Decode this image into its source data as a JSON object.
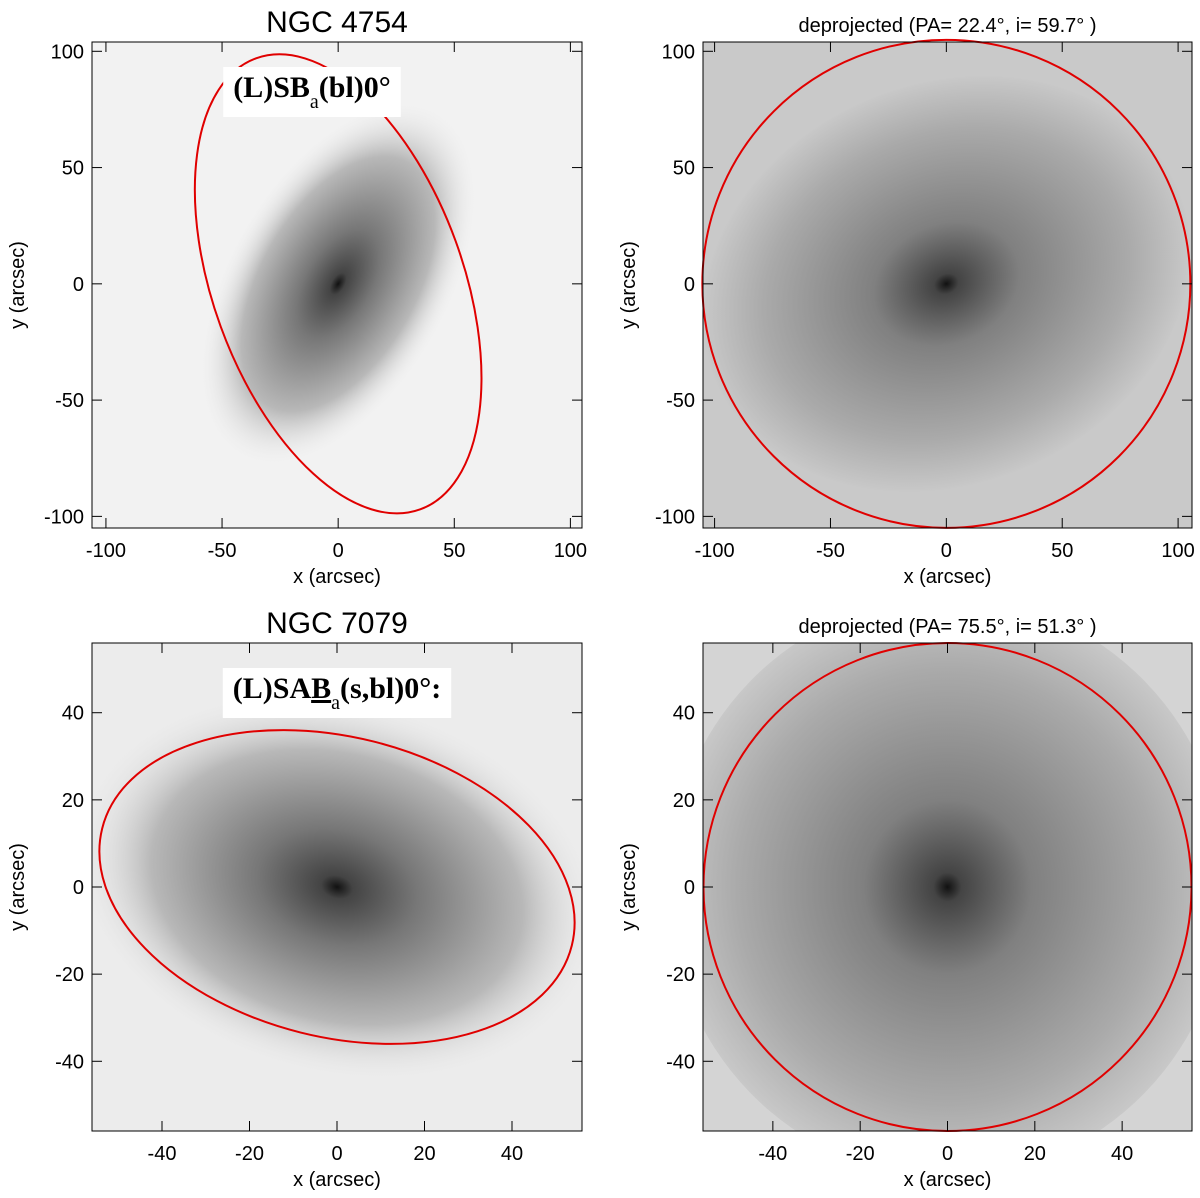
{
  "chart_data": [
    {
      "type": "image",
      "title": "NGC 4754",
      "label_parts": [
        {
          "text": "(L)SB"
        },
        {
          "text": "a",
          "style": "sub"
        },
        {
          "text": "(bl)0°"
        }
      ],
      "x_label": "x (arcsec)",
      "y_label": "y (arcsec)",
      "xlim": [
        -106,
        105
      ],
      "ylim": [
        -105,
        104
      ],
      "xticks": [
        -100,
        -50,
        0,
        50,
        100
      ],
      "yticks": [
        -100,
        -50,
        0,
        50,
        100
      ],
      "color": "#e00000"
    },
    {
      "type": "image",
      "title": "deprojected  (PA= 22.4°, i= 59.7° )",
      "x_label": "x (arcsec)",
      "y_label": "y (arcsec)",
      "xlim": [
        -105,
        106
      ],
      "ylim": [
        -105,
        104
      ],
      "xticks": [
        -100,
        -50,
        0,
        50,
        100
      ],
      "yticks": [
        -100,
        -50,
        0,
        50,
        100
      ],
      "color": "#e00000"
    },
    {
      "type": "image",
      "title": "NGC 7079",
      "label_parts": [
        {
          "text": "(L)SA"
        },
        {
          "text": "B",
          "style": "underline"
        },
        {
          "text": "a",
          "style": "sub"
        },
        {
          "text": "(s,bl)0°:"
        }
      ],
      "x_label": "x (arcsec)",
      "y_label": "y (arcsec)",
      "xlim": [
        -56,
        56
      ],
      "ylim": [
        -56,
        56
      ],
      "xticks": [
        -40,
        -20,
        0,
        20,
        40
      ],
      "yticks": [
        -40,
        -20,
        0,
        20,
        40
      ],
      "color": "#e00000"
    },
    {
      "type": "image",
      "title": "deprojected  (PA= 75.5°, i= 51.3° )",
      "x_label": "x (arcsec)",
      "y_label": "y (arcsec)",
      "xlim": [
        -56,
        56
      ],
      "ylim": [
        -56,
        56
      ],
      "xticks": [
        -40,
        -20,
        0,
        20,
        40
      ],
      "yticks": [
        -40,
        -20,
        0,
        20,
        40
      ],
      "color": "#e00000"
    }
  ]
}
